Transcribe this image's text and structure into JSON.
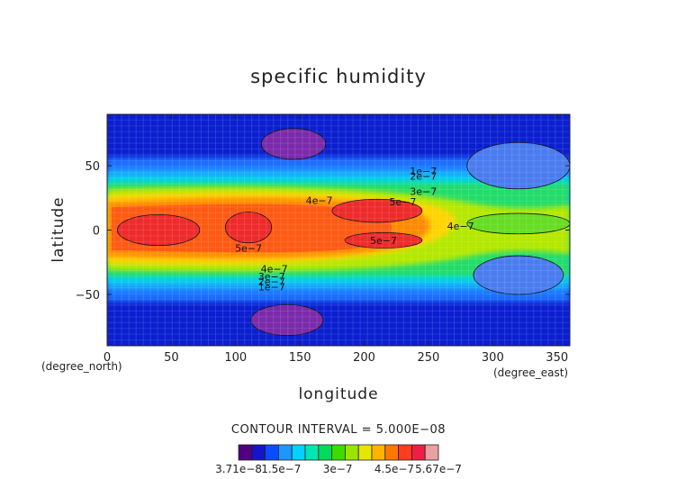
{
  "chart_data": {
    "type": "heatmap",
    "title": "specific humidity",
    "xlabel": "longitude",
    "ylabel": "latitude",
    "x_unit": "(degree_east)",
    "y_unit": "(degree_north)",
    "xlim": [
      0,
      360
    ],
    "ylim": [
      -90,
      90
    ],
    "x_ticks": [
      "0",
      "50",
      "100",
      "150",
      "200",
      "250",
      "300",
      "350"
    ],
    "y_ticks": [
      "50",
      "0",
      "−50"
    ],
    "x_tick_values": [
      0,
      50,
      100,
      150,
      200,
      250,
      300,
      350
    ],
    "y_tick_values": [
      50,
      0,
      -50
    ],
    "contour_interval_text": "CONTOUR INTERVAL = 5.000E−08",
    "contour_labels": [
      "1e−7",
      "2e−7",
      "3e−7",
      "4e−7",
      "5e−7",
      "5e−7",
      "5e−7",
      "4e−7",
      "4e−7",
      "3e−7",
      "2e−7",
      "1e−7"
    ],
    "contour_label_positions": [
      [
        246,
        46
      ],
      [
        246,
        42
      ],
      [
        246,
        30
      ],
      [
        165,
        23
      ],
      [
        230,
        22
      ],
      [
        215,
        -8
      ],
      [
        110,
        -14
      ],
      [
        275,
        3
      ],
      [
        130,
        -30
      ],
      [
        128,
        -36
      ],
      [
        128,
        -40
      ],
      [
        128,
        -44
      ]
    ],
    "colorbar_labels": [
      "3.71e−8",
      "1.5e−7",
      "3e−7",
      "4.5e−7",
      "5.67e−7"
    ],
    "colorbar_label_values": [
      3.71e-08,
      1.5e-07,
      3e-07,
      4.5e-07,
      5.67e-07
    ],
    "colorbar_colors": [
      "#520082",
      "#1414c8",
      "#0a4cff",
      "#1e96ff",
      "#00d2ff",
      "#00e6b4",
      "#00dc5a",
      "#3cdc00",
      "#9ae600",
      "#e6e600",
      "#ffb400",
      "#ff7800",
      "#ff3c1e",
      "#ee1e46",
      "#e8a0a0"
    ],
    "colorbar_min": 3.71e-08,
    "colorbar_max": 5.67e-07,
    "regions": [
      {
        "name": "polar-north-low",
        "value": 3.71e-08,
        "color": "#7a2aaa",
        "center": [
          145,
          67
        ],
        "half_width": 25,
        "half_height": 12
      },
      {
        "name": "polar-south-low",
        "value": 3.71e-08,
        "color": "#7a2aaa",
        "center": [
          140,
          -70
        ],
        "half_width": 28,
        "half_height": 12
      },
      {
        "name": "north-east-pocket",
        "value": 1.5e-07,
        "color": "#4a7cf0",
        "center": [
          320,
          50
        ],
        "half_width": 40,
        "half_height": 18
      },
      {
        "name": "south-east-pocket",
        "value": 1.5e-07,
        "color": "#4a7cf0",
        "center": [
          320,
          -35
        ],
        "half_width": 35,
        "half_height": 15
      },
      {
        "name": "east-green-tongue",
        "value": 3e-07,
        "color": "#66dd22",
        "center": [
          320,
          5
        ],
        "half_width": 40,
        "half_height": 8
      },
      {
        "name": "west-max",
        "value": 5.5e-07,
        "color": "#ee2a2a",
        "center": [
          40,
          0
        ],
        "half_width": 32,
        "half_height": 12
      },
      {
        "name": "center-max",
        "value": 5.5e-07,
        "color": "#ee2a2a",
        "center": [
          110,
          2
        ],
        "half_width": 18,
        "half_height": 12
      },
      {
        "name": "east-max-north",
        "value": 5.5e-07,
        "color": "#ee2a2a",
        "center": [
          210,
          15
        ],
        "half_width": 35,
        "half_height": 9
      },
      {
        "name": "east-max-south",
        "value": 5.5e-07,
        "color": "#ee2a2a",
        "center": [
          215,
          -8
        ],
        "half_width": 30,
        "half_height": 6
      }
    ]
  }
}
